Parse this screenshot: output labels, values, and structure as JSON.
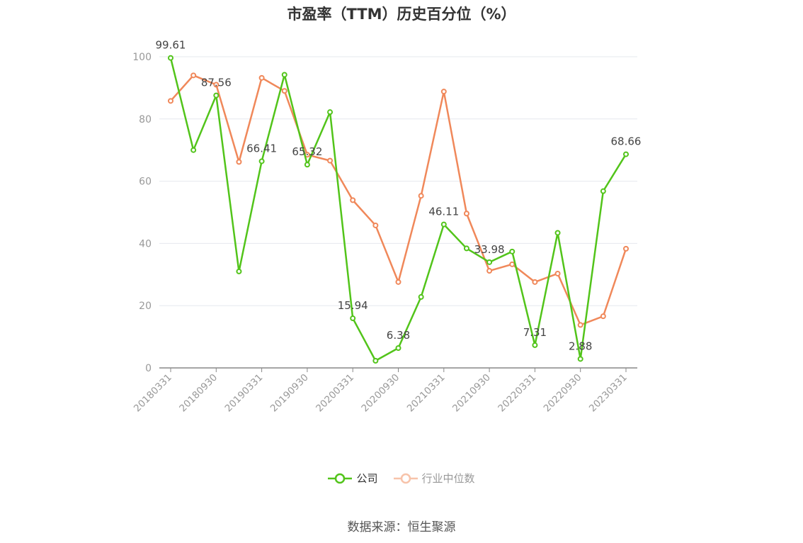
{
  "chart_data": {
    "type": "line",
    "title": "市盈率（TTM）历史百分位（%）",
    "xlabel": "",
    "ylabel": "",
    "ylim": [
      0,
      100
    ],
    "yticks": [
      0,
      20,
      40,
      60,
      80,
      100
    ],
    "grid": true,
    "legend_position": "bottom-center",
    "x": [
      "20180331",
      "20180630",
      "20180930",
      "20181231",
      "20190331",
      "20190630",
      "20190930",
      "20191231",
      "20200331",
      "20200630",
      "20200930",
      "20201231",
      "20210331",
      "20210630",
      "20210930",
      "20211231",
      "20220331",
      "20220630",
      "20220930",
      "20221231",
      "20230331"
    ],
    "x_tick_labels": [
      "20180331",
      "20180930",
      "20190331",
      "20190930",
      "20200331",
      "20200930",
      "20210331",
      "20210930",
      "20220331",
      "20220930",
      "20230331"
    ],
    "series": [
      {
        "name": "公司",
        "color": "#52c41a",
        "values": [
          99.61,
          70.0,
          87.56,
          31.0,
          66.41,
          94.2,
          65.32,
          82.2,
          15.94,
          2.3,
          6.38,
          22.8,
          46.11,
          38.4,
          33.98,
          37.4,
          7.31,
          43.4,
          2.88,
          56.8,
          68.66
        ],
        "labels": {
          "0": "99.61",
          "2": "87.56",
          "4": "66.41",
          "6": "65.32",
          "8": "15.94",
          "10": "6.38",
          "12": "46.11",
          "14": "33.98",
          "16": "7.31",
          "18": "2.88",
          "20": "68.66"
        }
      },
      {
        "name": "行业中位数",
        "color": "#f0885a",
        "values": [
          85.8,
          94.0,
          91.0,
          66.2,
          93.2,
          89.0,
          68.5,
          66.6,
          53.9,
          45.8,
          27.6,
          55.3,
          88.8,
          49.6,
          31.2,
          33.3,
          27.6,
          30.3,
          13.8,
          16.6,
          38.3
        ]
      }
    ]
  },
  "source": "数据来源：恒生聚源"
}
